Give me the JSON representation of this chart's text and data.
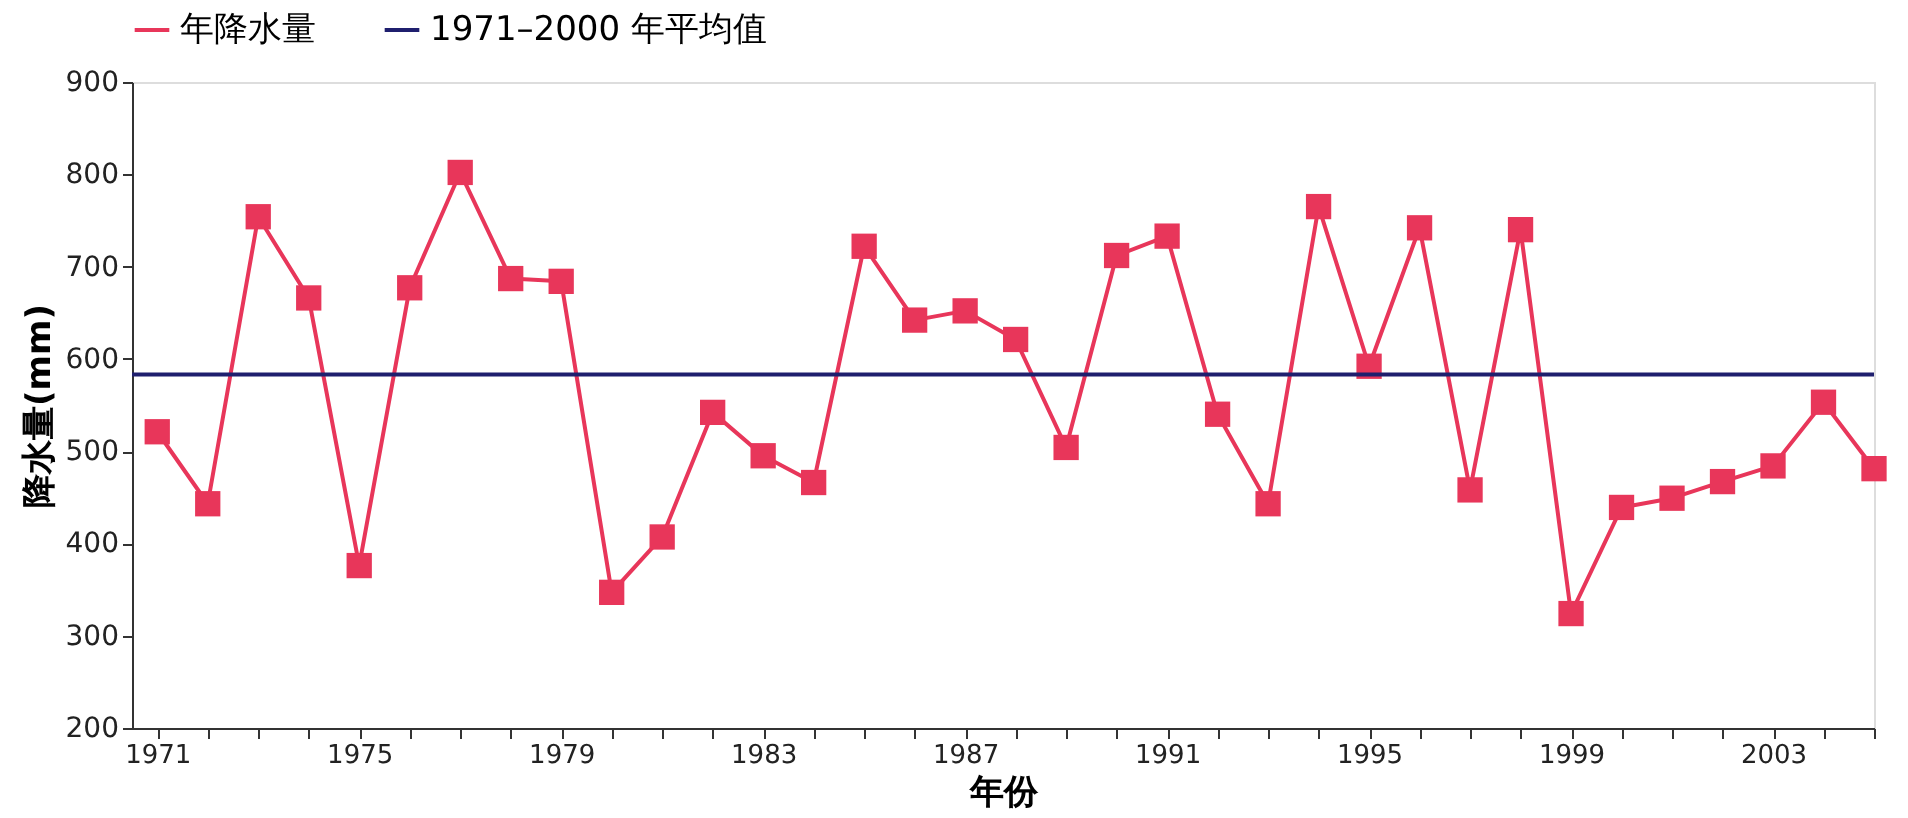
{
  "chart_data": {
    "type": "line",
    "xlabel": "年份",
    "ylabel": "降水量(mm)",
    "x": [
      1971,
      1972,
      1973,
      1974,
      1975,
      1976,
      1977,
      1978,
      1979,
      1980,
      1981,
      1982,
      1983,
      1984,
      1985,
      1986,
      1987,
      1988,
      1989,
      1990,
      1991,
      1992,
      1993,
      1994,
      1995,
      1996,
      1997,
      1998,
      1999,
      2000,
      2001,
      2002,
      2003,
      2004,
      2005
    ],
    "series": [
      {
        "name": "年降水量",
        "color": "#e8365a",
        "values": [
          521,
          443,
          754,
          666,
          376,
          677,
          802,
          687,
          684,
          347,
          407,
          542,
          495,
          466,
          722,
          642,
          652,
          621,
          504,
          712,
          733,
          540,
          443,
          765,
          592,
          742,
          458,
          740,
          324,
          439,
          449,
          467,
          484,
          553,
          481
        ]
      }
    ],
    "ref_lines": [
      {
        "axis": "y",
        "value": 583,
        "label": "1971–2000 年平均值",
        "color": "#1f1f6e"
      }
    ],
    "xlim": [
      1970.5,
      2005
    ],
    "xticks": [
      1971,
      {
        "value": 1972,
        "label": null
      },
      {
        "value": 1973,
        "label": null
      },
      {
        "value": 1974,
        "label": null
      },
      1975,
      {
        "value": 1976,
        "label": null
      },
      {
        "value": 1977,
        "label": null
      },
      {
        "value": 1978,
        "label": null
      },
      1979,
      {
        "value": 1980,
        "label": null
      },
      {
        "value": 1981,
        "label": null
      },
      {
        "value": 1982,
        "label": null
      },
      1983,
      {
        "value": 1984,
        "label": null
      },
      {
        "value": 1985,
        "label": null
      },
      {
        "value": 1986,
        "label": null
      },
      1987,
      {
        "value": 1988,
        "label": null
      },
      {
        "value": 1989,
        "label": null
      },
      {
        "value": 1990,
        "label": null
      },
      1991,
      {
        "value": 1992,
        "label": null
      },
      {
        "value": 1993,
        "label": null
      },
      {
        "value": 1994,
        "label": null
      },
      1995,
      {
        "value": 1996,
        "label": null
      },
      {
        "value": 1997,
        "label": null
      },
      {
        "value": 1998,
        "label": null
      },
      1999,
      {
        "value": 2000,
        "label": null
      },
      {
        "value": 2001,
        "label": null
      },
      {
        "value": 2002,
        "label": null
      },
      2003,
      {
        "value": 2004,
        "label": null
      },
      {
        "value": 2005,
        "label": null
      }
    ],
    "ylim": [
      200,
      900
    ],
    "yticks": [
      200,
      300,
      400,
      500,
      600,
      700,
      800,
      900
    ],
    "grid": false,
    "legend": "top",
    "marker": "square",
    "line_style": "solid"
  }
}
